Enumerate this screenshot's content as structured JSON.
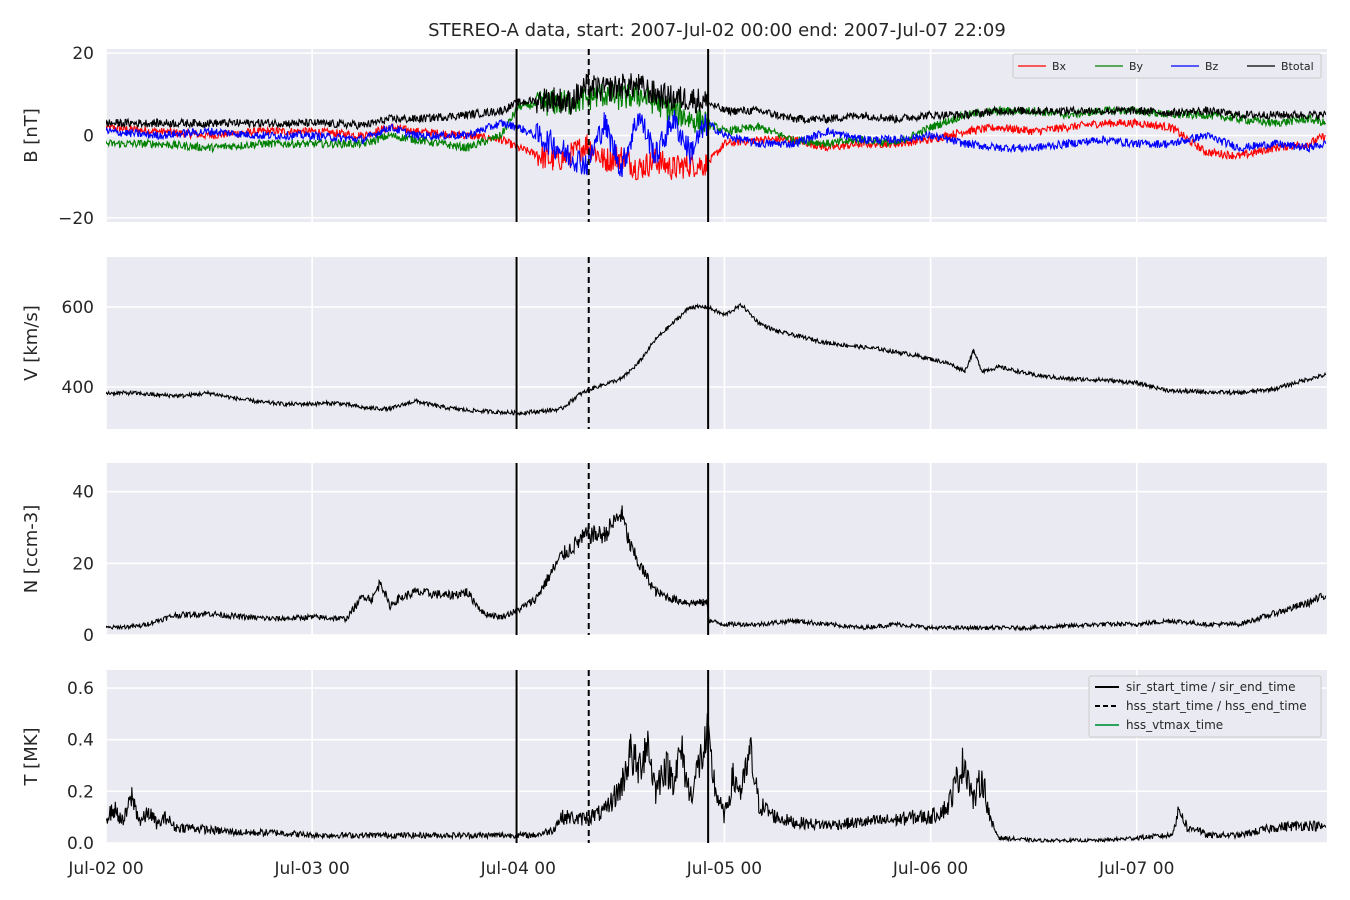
{
  "chart_data": {
    "type": "line",
    "title": "STEREO-A data, start: 2007-Jul-02 00:00  end: 2007-Jul-07 22:09",
    "x_range_hours": [
      0,
      142.15
    ],
    "x_ticks": [
      {
        "label": "Jul-02 00",
        "hour": 0
      },
      {
        "label": "Jul-03 00",
        "hour": 24
      },
      {
        "label": "Jul-04 00",
        "hour": 48
      },
      {
        "label": "Jul-05 00",
        "hour": 72
      },
      {
        "label": "Jul-06 00",
        "hour": 96
      },
      {
        "label": "Jul-07 00",
        "hour": 120
      }
    ],
    "event_lines": [
      {
        "name": "sir_start_time",
        "hour": 47.8,
        "style": "solid"
      },
      {
        "name": "hss_start_time",
        "hour": 56.2,
        "style": "dashed"
      },
      {
        "name": "sir_end_time",
        "hour": 70.1,
        "style": "solid"
      }
    ],
    "panels": [
      {
        "ylabel": "B [nT]",
        "ylim": [
          -21,
          21
        ],
        "yticks": [
          {
            "v": -20,
            "label": "−20"
          },
          {
            "v": 0,
            "label": "0"
          },
          {
            "v": 20,
            "label": "20"
          }
        ],
        "legend": "top-right",
        "series": [
          {
            "name": "Bx",
            "color": "#ff0000",
            "x": [
              0,
              6,
              12,
              18,
              24,
              30,
              33,
              36,
              42,
              46,
              48,
              52,
              54,
              56,
              58,
              60,
              62,
              64,
              66,
              68,
              70,
              72,
              76,
              80,
              84,
              88,
              92,
              96,
              100,
              104,
              108,
              112,
              116,
              120,
              124,
              128,
              132,
              136,
              140,
              142
            ],
            "y": [
              2,
              1,
              0,
              1,
              1,
              0,
              2,
              1,
              0,
              -1,
              -3,
              -6,
              -5,
              -2,
              -6,
              -5,
              -8,
              -6,
              -8,
              -7,
              -7,
              -2,
              -1,
              -1,
              -3,
              -2,
              -2,
              -1,
              1,
              2,
              1,
              2,
              3,
              3,
              2,
              -4,
              -5,
              -3,
              -2,
              0
            ]
          },
          {
            "name": "By",
            "color": "#008000",
            "x": [
              0,
              6,
              12,
              18,
              24,
              30,
              33,
              36,
              42,
              46,
              48,
              52,
              54,
              56,
              58,
              60,
              62,
              64,
              66,
              68,
              70,
              72,
              76,
              80,
              84,
              88,
              92,
              96,
              100,
              104,
              108,
              112,
              116,
              120,
              124,
              128,
              132,
              136,
              140,
              142
            ],
            "y": [
              -2,
              -2,
              -3,
              -2,
              -2,
              -2,
              0,
              -1,
              -3,
              0,
              7,
              8,
              8,
              9,
              10,
              9,
              10,
              8,
              6,
              4,
              3,
              1,
              2,
              -1,
              -2,
              -1,
              -2,
              2,
              5,
              6,
              6,
              5,
              6,
              6,
              5,
              5,
              4,
              3,
              4,
              3
            ]
          },
          {
            "name": "Bz",
            "color": "#0000ff",
            "x": [
              0,
              6,
              12,
              18,
              24,
              30,
              33,
              36,
              42,
              46,
              48,
              52,
              54,
              56,
              58,
              60,
              62,
              64,
              66,
              68,
              70,
              72,
              76,
              80,
              84,
              88,
              92,
              96,
              100,
              104,
              108,
              112,
              116,
              120,
              124,
              128,
              132,
              136,
              140,
              142
            ],
            "y": [
              1,
              0,
              1,
              0,
              0,
              -1,
              2,
              0,
              0,
              3,
              2,
              -2,
              -5,
              -7,
              3,
              -8,
              5,
              -5,
              4,
              -4,
              3,
              0,
              -2,
              -2,
              1,
              -1,
              -1,
              0,
              -2,
              -3,
              -3,
              -2,
              -1,
              -2,
              -2,
              0,
              -3,
              -2,
              -3,
              -2
            ]
          },
          {
            "name": "Btotal",
            "color": "#000000",
            "x": [
              0,
              6,
              12,
              18,
              24,
              30,
              33,
              36,
              42,
              46,
              48,
              52,
              54,
              56,
              58,
              60,
              62,
              64,
              66,
              68,
              70,
              72,
              76,
              80,
              84,
              88,
              92,
              96,
              100,
              104,
              108,
              112,
              116,
              120,
              124,
              128,
              132,
              136,
              140,
              142
            ],
            "y": [
              3,
              3,
              3,
              3,
              3,
              2.5,
              4,
              4,
              5,
              6,
              8,
              9,
              8,
              12,
              11,
              12,
              12,
              10,
              9,
              9,
              8,
              6,
              6,
              4,
              4,
              5,
              4,
              5,
              5,
              6,
              6,
              6,
              6,
              6,
              5.5,
              6,
              5,
              5,
              5,
              5
            ]
          }
        ]
      },
      {
        "ylabel": "V [km/s]",
        "ylim": [
          295,
          725
        ],
        "yticks": [
          {
            "v": 400,
            "label": "400"
          },
          {
            "v": 600,
            "label": "600"
          }
        ],
        "series": [
          {
            "name": "",
            "color": "#000000",
            "x": [
              0,
              3,
              6,
              9,
              12,
              15,
              18,
              21,
              24,
              27,
              30,
              33,
              36,
              39,
              42,
              45,
              48,
              51,
              53,
              55,
              57,
              60,
              62,
              64,
              66,
              68,
              70,
              72,
              74,
              76,
              78,
              80,
              84,
              88,
              90,
              94,
              96,
              98,
              100,
              101,
              102,
              104,
              108,
              112,
              116,
              120,
              124,
              128,
              132,
              136,
              140,
              142
            ],
            "y": [
              385,
              385,
              380,
              378,
              385,
              372,
              362,
              357,
              358,
              360,
              348,
              345,
              365,
              350,
              342,
              338,
              335,
              340,
              345,
              380,
              400,
              420,
              460,
              520,
              560,
              600,
              600,
              580,
              605,
              560,
              540,
              530,
              510,
              500,
              495,
              480,
              470,
              460,
              440,
              490,
              440,
              450,
              430,
              420,
              418,
              410,
              390,
              388,
              385,
              395,
              420,
              430
            ]
          }
        ]
      },
      {
        "ylabel": "N [ccm-3]",
        "ylim": [
          0,
          48
        ],
        "yticks": [
          {
            "v": 0,
            "label": "0"
          },
          {
            "v": 20,
            "label": "20"
          },
          {
            "v": 40,
            "label": "40"
          }
        ],
        "series": [
          {
            "name": "",
            "color": "#000000",
            "x": [
              0,
              4,
              8,
              12,
              16,
              20,
              24,
              28,
              29,
              30,
              31,
              32,
              33,
              34,
              36,
              40,
              42,
              44,
              46,
              48,
              50,
              52,
              53,
              54,
              55,
              56,
              58,
              60,
              61,
              62,
              64,
              66,
              68,
              70,
              70.2,
              72,
              76,
              80,
              84,
              88,
              92,
              96,
              100,
              104,
              108,
              112,
              116,
              120,
              124,
              128,
              132,
              136,
              140,
              142
            ],
            "y": [
              2,
              2.5,
              5.5,
              6,
              5,
              4.5,
              5,
              4.5,
              8,
              11,
              10,
              15,
              8,
              10,
              12,
              11,
              12,
              6,
              5,
              7,
              10,
              18,
              22,
              24,
              26,
              28,
              28,
              34,
              25,
              20,
              12,
              10,
              9,
              9,
              4,
              3,
              3,
              4,
              3,
              2,
              3,
              2,
              2,
              2,
              2,
              2.5,
              3,
              3,
              4,
              3,
              3,
              6,
              9,
              11
            ]
          }
        ]
      },
      {
        "ylabel": "T [MK]",
        "ylim": [
          0,
          0.67
        ],
        "yticks": [
          {
            "v": 0,
            "label": "0.0"
          },
          {
            "v": 0.2,
            "label": "0.2"
          },
          {
            "v": 0.4,
            "label": "0.4"
          },
          {
            "v": 0.6,
            "label": "0.6"
          }
        ],
        "legend": "top-right",
        "legend_entries": [
          {
            "label": "sir_start_time / sir_end_time",
            "style": "solid",
            "color": "#000000"
          },
          {
            "label": "hss_start_time / hss_end_time",
            "style": "dashed",
            "color": "#000000"
          },
          {
            "label": "hss_vtmax_time",
            "style": "solid",
            "color": "#2ca25f"
          }
        ],
        "series": [
          {
            "name": "",
            "color": "#000000",
            "x": [
              0,
              1,
              2,
              3,
              4,
              5,
              6,
              7,
              8,
              10,
              12,
              16,
              20,
              24,
              28,
              32,
              36,
              40,
              44,
              48,
              50,
              52,
              53,
              54,
              55,
              56,
              58,
              60,
              61,
              62,
              63,
              64,
              65,
              66,
              67,
              68,
              69,
              70,
              71,
              72,
              73,
              74,
              75,
              76,
              78,
              80,
              84,
              88,
              92,
              94,
              96,
              98,
              99,
              100,
              101,
              102,
              103,
              104,
              108,
              112,
              116,
              120,
              124,
              125,
              126,
              127,
              128,
              130,
              132,
              136,
              140,
              142
            ],
            "y": [
              0.1,
              0.13,
              0.08,
              0.18,
              0.08,
              0.12,
              0.07,
              0.1,
              0.06,
              0.06,
              0.05,
              0.04,
              0.04,
              0.03,
              0.03,
              0.03,
              0.03,
              0.03,
              0.03,
              0.03,
              0.03,
              0.05,
              0.1,
              0.1,
              0.09,
              0.1,
              0.12,
              0.22,
              0.35,
              0.28,
              0.4,
              0.2,
              0.3,
              0.25,
              0.35,
              0.18,
              0.3,
              0.4,
              0.2,
              0.1,
              0.25,
              0.2,
              0.35,
              0.15,
              0.1,
              0.08,
              0.07,
              0.08,
              0.09,
              0.1,
              0.1,
              0.14,
              0.24,
              0.32,
              0.16,
              0.26,
              0.08,
              0.02,
              0.01,
              0.01,
              0.01,
              0.02,
              0.03,
              0.13,
              0.05,
              0.06,
              0.03,
              0.03,
              0.03,
              0.06,
              0.07,
              0.06
            ]
          }
        ]
      }
    ]
  }
}
